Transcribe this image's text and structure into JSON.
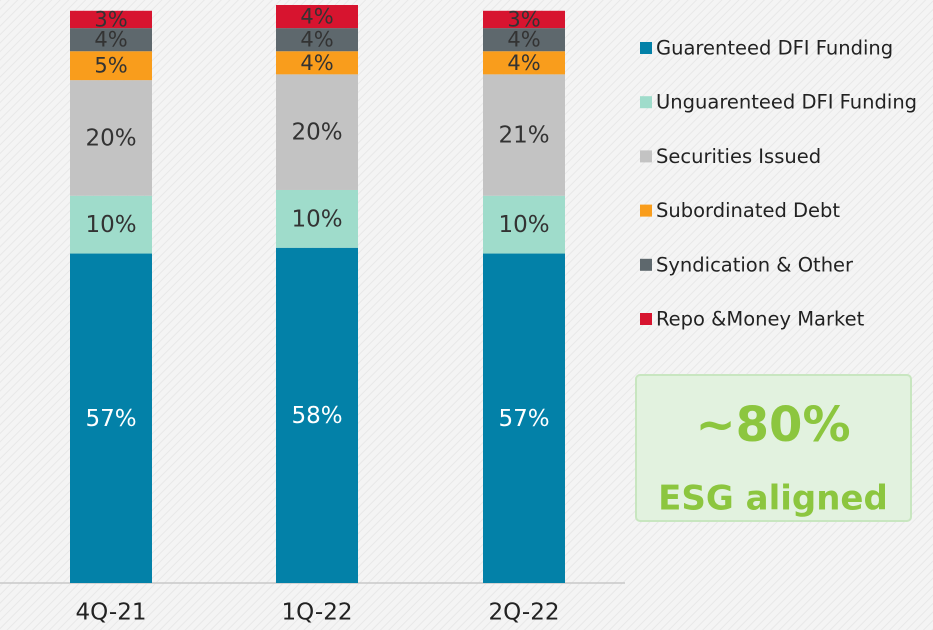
{
  "chart_data": {
    "type": "stacked_bar",
    "categories": [
      "4Q-21",
      "1Q-22",
      "2Q-22"
    ],
    "series": [
      {
        "name": "Guarenteed DFI Funding",
        "color": "#0381a8",
        "values": [
          57,
          58,
          57
        ],
        "value_labels": [
          "57%",
          "58%",
          "57%"
        ]
      },
      {
        "name": "Unguarenteed DFI Funding",
        "color": "#9fdccb",
        "values": [
          10,
          10,
          10
        ],
        "value_labels": [
          "10%",
          "10%",
          "10%"
        ]
      },
      {
        "name": "Securities Issued",
        "color": "#c3c3c3",
        "values": [
          20,
          20,
          21
        ],
        "value_labels": [
          "20%",
          "20%",
          "21%"
        ]
      },
      {
        "name": "Subordinated Debt",
        "color": "#f99d1c",
        "values": [
          5,
          4,
          4
        ],
        "value_labels": [
          "5%",
          "4%",
          "4%"
        ]
      },
      {
        "name": "Syndication & Other",
        "color": "#5e686d",
        "values": [
          4,
          4,
          4
        ],
        "value_labels": [
          "4%",
          "4%",
          "4%"
        ]
      },
      {
        "name": "Repo &Money Market",
        "color": "#d7142f",
        "values": [
          3,
          4,
          3
        ],
        "value_labels": [
          "3%",
          "4%",
          "3%"
        ]
      }
    ],
    "annotations": [
      "~80%",
      "ESG aligned"
    ],
    "legend": "right"
  }
}
